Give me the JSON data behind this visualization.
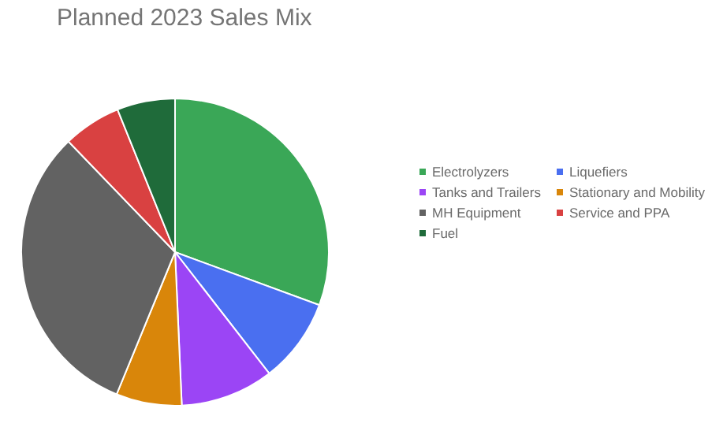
{
  "chart_data": {
    "type": "pie",
    "title": "Planned 2023 Sales Mix",
    "categories": [
      "Electrolyzers",
      "Liquefiers",
      "Tanks and Trailers",
      "Stationary and Mobility",
      "MH Equipment",
      "Service and PPA",
      "Fuel"
    ],
    "values": [
      30.6,
      8.9,
      9.8,
      6.9,
      31.6,
      6.1,
      6.1
    ],
    "colors": [
      "#3aa757",
      "#4a6ff0",
      "#9b45f5",
      "#d9860a",
      "#626262",
      "#d94141",
      "#1f6b3a"
    ],
    "legend": "right"
  }
}
